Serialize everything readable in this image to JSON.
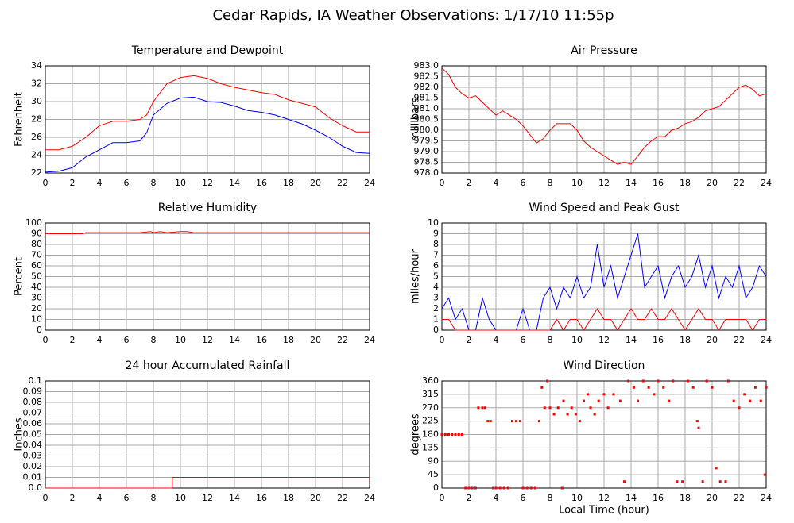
{
  "title": "Cedar Rapids, IA Weather Observations: 1/17/10 11:55p",
  "chart_data": [
    {
      "type": "line",
      "title": "Temperature and Dewpoint",
      "ylabel": "Fahrenheit",
      "grid": true,
      "xlim": [
        0,
        24
      ],
      "xticks": [
        0,
        2,
        4,
        6,
        8,
        10,
        12,
        14,
        16,
        18,
        20,
        22,
        24
      ],
      "ylim": [
        22,
        34
      ],
      "yticks": [
        22,
        24,
        26,
        28,
        30,
        32,
        34
      ],
      "x": [
        0,
        1,
        2,
        3,
        4,
        5,
        6,
        7,
        7.5,
        8,
        9,
        10,
        11,
        12,
        13,
        14,
        15,
        16,
        17,
        18,
        19,
        20,
        21,
        22,
        23,
        24
      ],
      "series": [
        {
          "color": "#ff0000",
          "values": [
            24.6,
            24.6,
            25,
            26,
            27.3,
            27.8,
            27.8,
            28,
            28.5,
            30,
            32,
            32.7,
            32.9,
            32.6,
            32,
            31.6,
            31.3,
            31,
            30.8,
            30.2,
            29.8,
            29.4,
            28.2,
            27.3,
            26.6,
            26.6
          ]
        },
        {
          "color": "#0000ff",
          "values": [
            22.1,
            22.2,
            22.6,
            23.8,
            24.6,
            25.4,
            25.4,
            25.6,
            26.5,
            28.5,
            29.8,
            30.4,
            30.5,
            30,
            29.9,
            29.5,
            29,
            28.8,
            28.5,
            28,
            27.5,
            26.8,
            26,
            25,
            24.3,
            24.2
          ]
        }
      ]
    },
    {
      "type": "line",
      "title": "Air Pressure",
      "ylabel": "millibars",
      "grid": true,
      "xlim": [
        0,
        24
      ],
      "xticks": [
        0,
        2,
        4,
        6,
        8,
        10,
        12,
        14,
        16,
        18,
        20,
        22,
        24
      ],
      "ylim": [
        978,
        983
      ],
      "yticks": [
        {
          "value": 978,
          "label": "978.0"
        },
        978.5,
        {
          "value": 979,
          "label": "979.0"
        },
        979.5,
        {
          "value": 980,
          "label": "980.0"
        },
        980.5,
        {
          "value": 981,
          "label": "981.0"
        },
        981.5,
        {
          "value": 982,
          "label": "982.0"
        },
        982.5,
        {
          "value": 983,
          "label": "983.0"
        }
      ],
      "x": [
        0,
        0.5,
        1,
        1.5,
        2,
        2.5,
        3,
        3.5,
        4,
        4.5,
        5,
        5.5,
        6,
        6.5,
        7,
        7.5,
        8,
        8.5,
        9,
        9.5,
        10,
        10.5,
        11,
        11.5,
        12,
        12.5,
        13,
        13.5,
        14,
        14.5,
        15,
        15.5,
        16,
        16.5,
        17,
        17.5,
        18,
        18.5,
        19,
        19.5,
        20,
        20.5,
        21,
        21.5,
        22,
        22.5,
        23,
        23.5,
        24
      ],
      "series": [
        {
          "color": "#ff0000",
          "values": [
            982.9,
            982.6,
            982.0,
            981.7,
            981.5,
            981.6,
            981.3,
            981.0,
            980.7,
            980.9,
            980.7,
            980.5,
            980.2,
            979.8,
            979.4,
            979.6,
            980.0,
            980.3,
            980.3,
            980.3,
            980.0,
            979.5,
            979.2,
            979.0,
            978.8,
            978.6,
            978.4,
            978.5,
            978.4,
            978.8,
            979.2,
            979.5,
            979.7,
            979.7,
            980.0,
            980.1,
            980.3,
            980.4,
            980.6,
            980.9,
            981.0,
            981.1,
            981.4,
            981.7,
            982.0,
            982.1,
            981.9,
            981.6,
            981.7
          ]
        }
      ]
    },
    {
      "type": "line",
      "title": "Relative Humidity",
      "ylabel": "Percent",
      "grid": true,
      "xlim": [
        0,
        24
      ],
      "xticks": [
        0,
        2,
        4,
        6,
        8,
        10,
        12,
        14,
        16,
        18,
        20,
        22,
        24
      ],
      "ylim": [
        0,
        100
      ],
      "yticks": [
        0,
        10,
        20,
        30,
        40,
        50,
        60,
        70,
        80,
        90,
        100
      ],
      "x": [
        0,
        1,
        2,
        2.7,
        3,
        4,
        5,
        6,
        7,
        7.8,
        8,
        8.5,
        9,
        10,
        10.5,
        11,
        12,
        13,
        14,
        15,
        16,
        17,
        18,
        19,
        20,
        21,
        22,
        23,
        24
      ],
      "series": [
        {
          "color": "#ff0000",
          "values": [
            90,
            90,
            90,
            90,
            91,
            91,
            91,
            91,
            91,
            92,
            91,
            92,
            91,
            92,
            92,
            91,
            91,
            91,
            91,
            91,
            91,
            91,
            91,
            91,
            91,
            91,
            91,
            91,
            91
          ]
        }
      ]
    },
    {
      "type": "line",
      "title": "Wind Speed and Peak Gust",
      "ylabel": "miles/hour",
      "grid": true,
      "xlim": [
        0,
        24
      ],
      "xticks": [
        0,
        2,
        4,
        6,
        8,
        10,
        12,
        14,
        16,
        18,
        20,
        22,
        24
      ],
      "ylim": [
        0,
        10
      ],
      "yticks": [
        0,
        1,
        2,
        3,
        4,
        5,
        6,
        7,
        8,
        9,
        10
      ],
      "x": [
        0,
        0.5,
        1,
        1.5,
        2,
        2.5,
        3,
        3.5,
        4,
        4.5,
        5,
        5.5,
        6,
        6.5,
        7,
        7.5,
        8,
        8.5,
        9,
        9.5,
        10,
        10.5,
        11,
        11.5,
        12,
        12.5,
        13,
        13.5,
        14,
        14.5,
        15,
        15.5,
        16,
        16.5,
        17,
        17.5,
        18,
        18.5,
        19,
        19.5,
        20,
        20.5,
        21,
        21.5,
        22,
        22.5,
        23,
        23.5,
        24
      ],
      "series": [
        {
          "color": "#0000ff",
          "values": [
            2,
            3,
            1,
            2,
            0,
            0,
            3,
            1,
            0,
            0,
            0,
            0,
            2,
            0,
            0,
            3,
            4,
            2,
            4,
            3,
            5,
            3,
            4,
            8,
            4,
            6,
            3,
            5,
            7,
            9,
            4,
            5,
            6,
            3,
            5,
            6,
            4,
            5,
            7,
            4,
            6,
            3,
            5,
            4,
            6,
            3,
            4,
            6,
            5
          ]
        },
        {
          "color": "#ff0000",
          "values": [
            1,
            1,
            0,
            0,
            0,
            0,
            0,
            0,
            0,
            0,
            0,
            0,
            0,
            0,
            0,
            0,
            0,
            1,
            0,
            1,
            1,
            0,
            1,
            2,
            1,
            1,
            0,
            1,
            2,
            1,
            1,
            2,
            1,
            1,
            2,
            1,
            0,
            1,
            2,
            1,
            1,
            0,
            1,
            1,
            1,
            1,
            0,
            1,
            1
          ]
        }
      ]
    },
    {
      "type": "line",
      "title": "24 hour Accumulated Rainfall",
      "ylabel": "Inches",
      "grid": true,
      "xlim": [
        0,
        24
      ],
      "xticks": [
        0,
        2,
        4,
        6,
        8,
        10,
        12,
        14,
        16,
        18,
        20,
        22,
        24
      ],
      "ylim": [
        0,
        0.1
      ],
      "yticks": [
        {
          "value": 0,
          "label": "0.0"
        },
        0.01,
        0.02,
        0.03,
        0.04,
        0.05,
        0.06,
        0.07,
        0.08,
        0.09,
        0.1
      ],
      "x": [
        0,
        9.4,
        9.4,
        24
      ],
      "series": [
        {
          "color": "#ff0000",
          "values": [
            0,
            0,
            0.01,
            0.01
          ]
        }
      ]
    },
    {
      "type": "scatter",
      "title": "Wind Direction",
      "ylabel": "degrees",
      "xlabel": "Local Time (hour)",
      "grid": true,
      "xlim": [
        0,
        24
      ],
      "xticks": [
        0,
        2,
        4,
        6,
        8,
        10,
        12,
        14,
        16,
        18,
        20,
        22,
        24
      ],
      "ylim": [
        0,
        360
      ],
      "yticks": [
        0,
        45,
        90,
        135,
        180,
        225,
        270,
        315,
        360
      ],
      "x": [
        0,
        0.25,
        0.5,
        0.75,
        1,
        1.25,
        1.5,
        1.75,
        2,
        2.25,
        2.5,
        2.7,
        3,
        3.2,
        3.4,
        3.6,
        3.8,
        4,
        4.3,
        4.6,
        4.9,
        5.2,
        5.5,
        5.8,
        6,
        6.3,
        6.6,
        6.9,
        7.2,
        7.4,
        7.6,
        7.8,
        8,
        8.3,
        8.6,
        8.9,
        9,
        9.3,
        9.6,
        9.9,
        10.2,
        10.5,
        10.8,
        11,
        11.3,
        11.6,
        12,
        12.3,
        12.7,
        13.2,
        13.5,
        13.8,
        14.2,
        14.5,
        14.9,
        15.3,
        15.7,
        16,
        16.4,
        16.8,
        17.1,
        17.4,
        17.8,
        18.2,
        18.6,
        18.9,
        19,
        19.3,
        19.6,
        20,
        20.3,
        20.6,
        21,
        21.2,
        21.6,
        22,
        22.4,
        22.8,
        23.2,
        23.6,
        23.9,
        24
      ],
      "series": [
        {
          "color": "#ff0000",
          "values": [
            180,
            180,
            180,
            180,
            180,
            180,
            180,
            0,
            0,
            0,
            0,
            270,
            270,
            270,
            225,
            225,
            0,
            0,
            0,
            0,
            0,
            225,
            225,
            225,
            0,
            0,
            0,
            0,
            225,
            338,
            270,
            360,
            270,
            248,
            270,
            0,
            293,
            248,
            270,
            248,
            225,
            293,
            315,
            270,
            248,
            293,
            315,
            270,
            315,
            293,
            22,
            360,
            338,
            293,
            360,
            338,
            315,
            360,
            338,
            293,
            360,
            22,
            22,
            360,
            338,
            225,
            202,
            22,
            360,
            338,
            67,
            22,
            22,
            360,
            293,
            270,
            315,
            293,
            338,
            293,
            45,
            338
          ]
        }
      ]
    }
  ]
}
